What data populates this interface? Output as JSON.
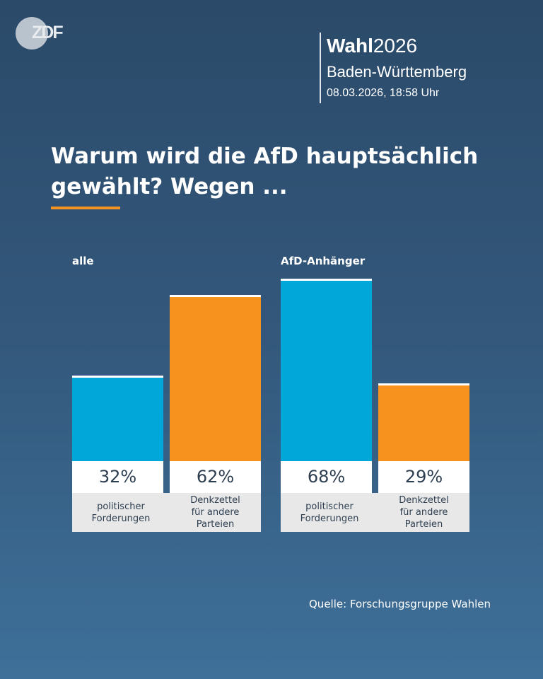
{
  "header": {
    "logo": "ZDF",
    "brand_bold": "Wahl",
    "brand_year": "2026",
    "region": "Baden-Württemberg",
    "timestamp": "08.03.2026, 18:58 Uhr"
  },
  "chart_data": {
    "type": "bar",
    "title": "Warum wird die AfD hauptsächlich gewählt? Wegen ...",
    "groups": [
      "alle",
      "AfD-Anhänger"
    ],
    "categories": [
      "politischer\nForderungen",
      "Denkzettel\nfür andere\nParteien",
      "politischer\nForderungen",
      "Denkzettel\nfür andere\nParteien"
    ],
    "values": [
      32,
      62,
      68,
      29
    ],
    "labels": [
      "32%",
      "62%",
      "68%",
      "29%"
    ],
    "colors": [
      "#00a7d8",
      "#f7921e",
      "#00a7d8",
      "#f7921e"
    ],
    "ylim": [
      0,
      100
    ],
    "grid": false
  },
  "source": "Quelle: Forschungsgruppe Wahlen"
}
